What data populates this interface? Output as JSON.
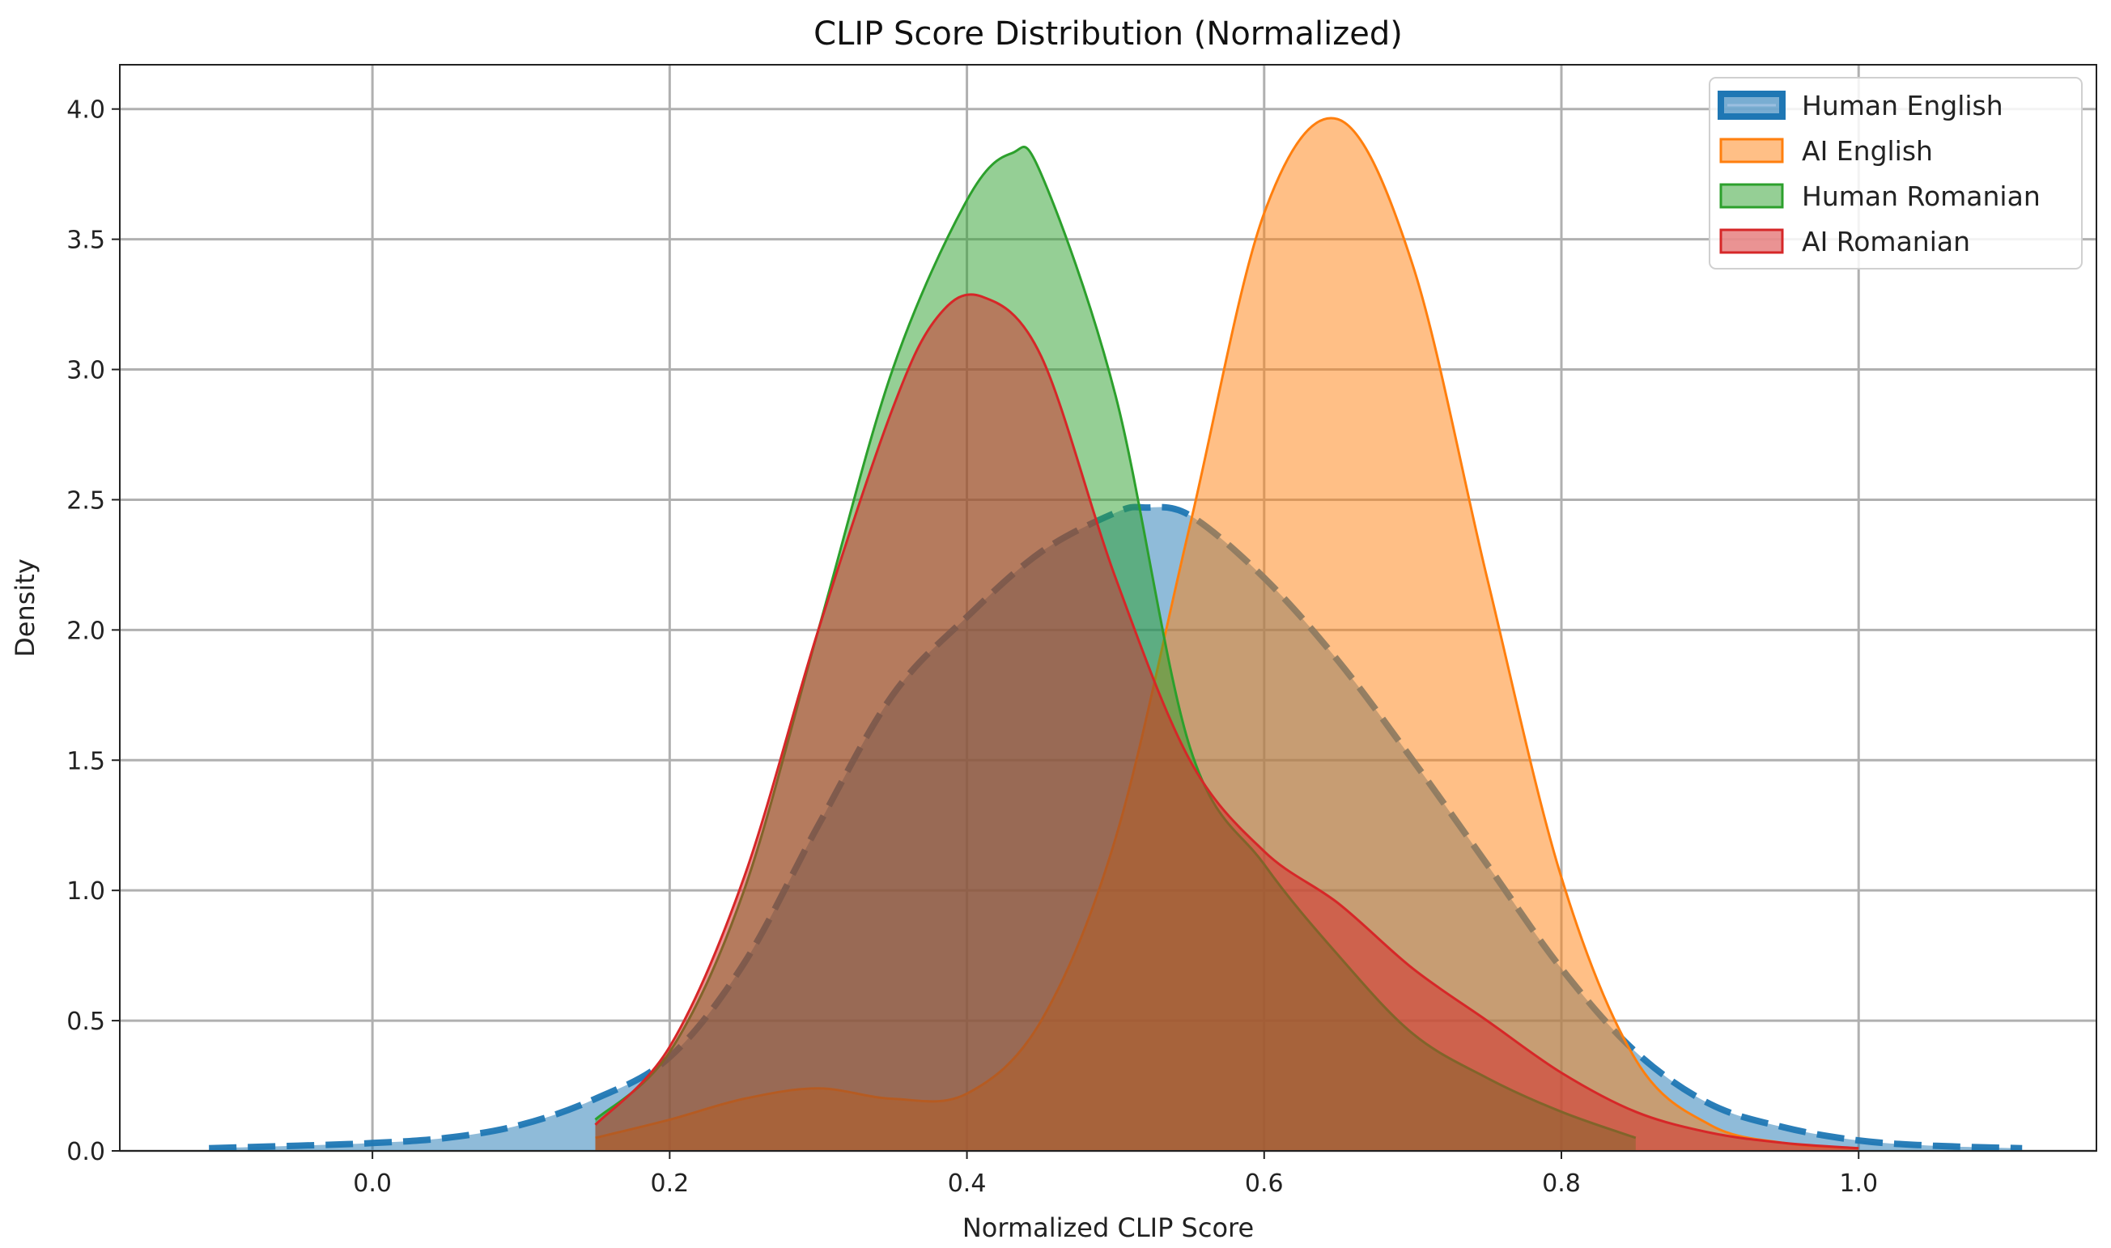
{
  "chart_data": {
    "type": "area",
    "title": "CLIP Score Distribution (Normalized)",
    "xlabel": "Normalized CLIP Score",
    "ylabel": "Density",
    "xlim": [
      -0.17,
      1.16
    ],
    "ylim": [
      0,
      4.17
    ],
    "x_ticks": [
      0.0,
      0.2,
      0.4,
      0.6,
      0.8,
      1.0
    ],
    "x_tick_labels": [
      "0.0",
      "0.2",
      "0.4",
      "0.6",
      "0.8",
      "1.0"
    ],
    "y_ticks": [
      0.0,
      0.5,
      1.0,
      1.5,
      2.0,
      2.5,
      3.0,
      3.5,
      4.0
    ],
    "y_tick_labels": [
      "0.0",
      "0.5",
      "1.0",
      "1.5",
      "2.0",
      "2.5",
      "3.0",
      "3.5",
      "4.0"
    ],
    "grid": true,
    "legend_position": "top-right",
    "series": [
      {
        "name": "Human English",
        "color": "#1f77b4",
        "line_style": "dashed",
        "x": [
          -0.11,
          -0.05,
          0.0,
          0.05,
          0.1,
          0.15,
          0.2,
          0.25,
          0.3,
          0.35,
          0.4,
          0.45,
          0.5,
          0.52,
          0.55,
          0.6,
          0.65,
          0.7,
          0.75,
          0.8,
          0.85,
          0.9,
          0.95,
          1.0,
          1.05,
          1.11
        ],
        "y": [
          0.01,
          0.02,
          0.03,
          0.05,
          0.1,
          0.2,
          0.36,
          0.72,
          1.25,
          1.75,
          2.05,
          2.3,
          2.45,
          2.47,
          2.44,
          2.2,
          1.88,
          1.5,
          1.1,
          0.7,
          0.38,
          0.18,
          0.09,
          0.04,
          0.02,
          0.01
        ]
      },
      {
        "name": "AI English",
        "color": "#ff7f0e",
        "line_style": "solid",
        "x": [
          0.15,
          0.2,
          0.25,
          0.3,
          0.35,
          0.4,
          0.45,
          0.5,
          0.55,
          0.6,
          0.65,
          0.7,
          0.75,
          0.8,
          0.85,
          0.9,
          0.95,
          1.0
        ],
        "y": [
          0.05,
          0.12,
          0.2,
          0.24,
          0.2,
          0.22,
          0.5,
          1.2,
          2.4,
          3.6,
          3.96,
          3.4,
          2.2,
          1.05,
          0.35,
          0.1,
          0.03,
          0.01
        ]
      },
      {
        "name": "Human Romanian",
        "color": "#2ca02c",
        "line_style": "solid",
        "x": [
          0.15,
          0.2,
          0.25,
          0.3,
          0.35,
          0.4,
          0.43,
          0.45,
          0.5,
          0.55,
          0.6,
          0.65,
          0.7,
          0.75,
          0.8,
          0.85
        ],
        "y": [
          0.12,
          0.38,
          1.0,
          2.0,
          3.0,
          3.65,
          3.83,
          3.75,
          2.9,
          1.55,
          1.1,
          0.75,
          0.45,
          0.28,
          0.15,
          0.05
        ]
      },
      {
        "name": "AI Romanian",
        "color": "#d62728",
        "line_style": "solid",
        "x": [
          0.15,
          0.2,
          0.25,
          0.3,
          0.35,
          0.38,
          0.41,
          0.45,
          0.5,
          0.55,
          0.6,
          0.65,
          0.7,
          0.75,
          0.8,
          0.85,
          0.9,
          0.95,
          1.0
        ],
        "y": [
          0.1,
          0.4,
          1.05,
          2.0,
          2.85,
          3.2,
          3.28,
          3.05,
          2.2,
          1.5,
          1.15,
          0.95,
          0.7,
          0.5,
          0.3,
          0.15,
          0.07,
          0.03,
          0.01
        ]
      }
    ]
  }
}
